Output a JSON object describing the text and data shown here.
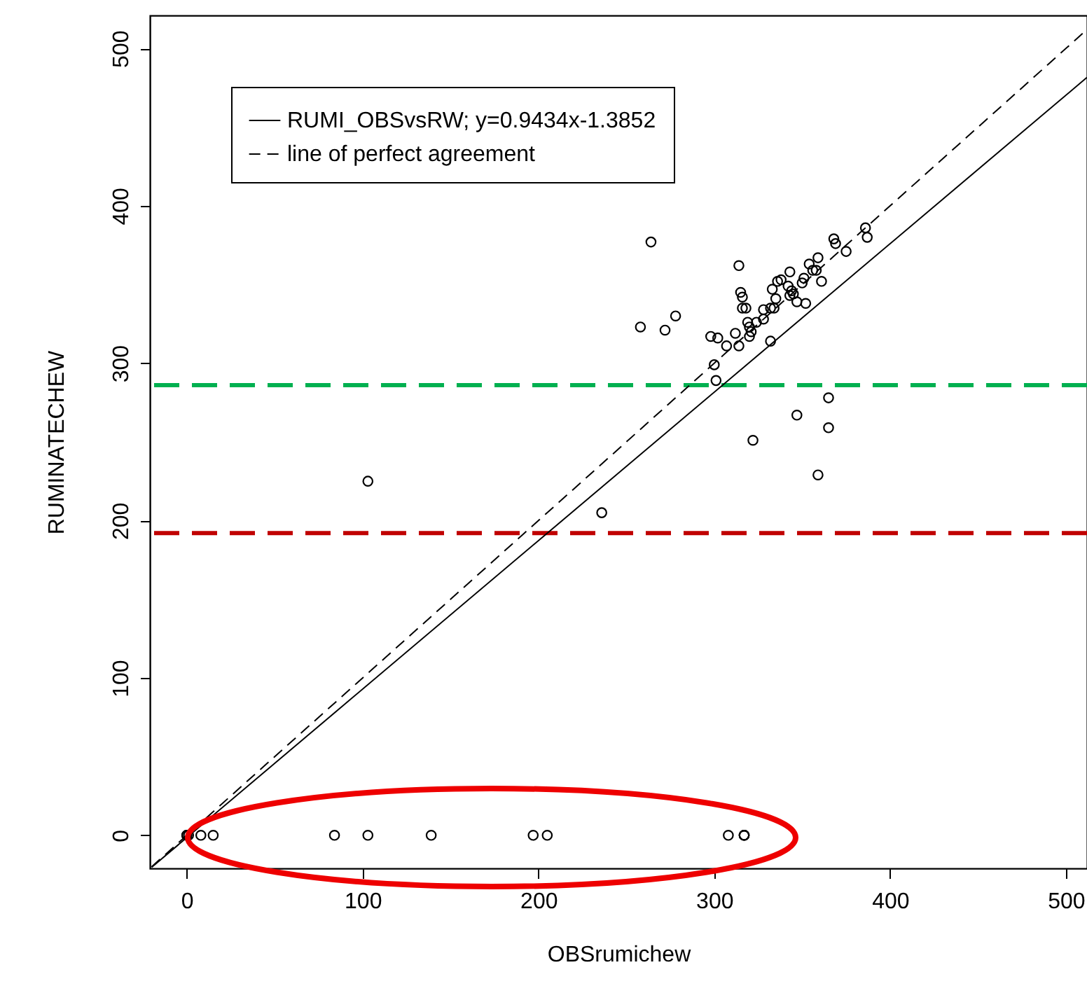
{
  "chart_data": {
    "type": "scatter",
    "xlabel": "OBSrumichew",
    "ylabel": "RUMINATECHEW",
    "xlim": [
      -21,
      512
    ],
    "ylim": [
      -21,
      521
    ],
    "xticks": [
      0,
      100,
      200,
      300,
      400,
      500
    ],
    "yticks": [
      0,
      100,
      200,
      300,
      400,
      500
    ],
    "grid": false,
    "legend": "top left",
    "series": [
      {
        "color": "#000000",
        "marker": "circle",
        "x": [
          264,
          314,
          258,
          272,
          278,
          298,
          302,
          307,
          314,
          312,
          315,
          316,
          316,
          318,
          319,
          320,
          321,
          320,
          324,
          328,
          328,
          332,
          334,
          332,
          335,
          333,
          336,
          338,
          343,
          342,
          344,
          343,
          345,
          347,
          350,
          352,
          351,
          354,
          356,
          359,
          358,
          361,
          368,
          369,
          375,
          386,
          387,
          301,
          300,
          365,
          347,
          365,
          322,
          359,
          103,
          236,
          0,
          0,
          1,
          8,
          15,
          84,
          103,
          139,
          197,
          205,
          308,
          317,
          317,
          317
        ],
        "values": [
          377,
          362,
          323,
          321,
          330,
          317,
          316,
          311,
          311,
          319,
          345,
          342,
          335,
          335,
          326,
          323,
          320,
          317,
          326,
          334,
          328,
          335,
          335,
          314,
          341,
          347,
          352,
          353,
          358,
          349,
          346,
          343,
          344,
          339,
          351,
          338,
          354,
          363,
          359,
          367,
          359,
          352,
          379,
          376,
          371,
          386,
          380,
          289,
          299,
          278,
          267,
          259,
          251,
          229,
          225,
          205,
          0,
          0,
          0,
          0,
          0,
          0,
          0,
          0,
          0,
          0,
          0,
          0,
          0,
          0
        ]
      },
      {
        "type": "line",
        "name": "RUMI_OBSvsRW; y=0.9434x-1.3852",
        "color": "#000000",
        "line_style": "solid",
        "x": [
          -20,
          512
        ],
        "values": [
          -20.3,
          481.6
        ]
      },
      {
        "type": "line",
        "name": "line of perfect agreement",
        "color": "#000000",
        "line_style": "dashed",
        "x": [
          -20,
          512
        ],
        "values": [
          -20,
          512
        ]
      }
    ],
    "ref_lines": [
      {
        "axis": "y",
        "value": 286,
        "color": "#00b050",
        "line_style": "dashed"
      },
      {
        "axis": "y",
        "value": 192,
        "color": "#c00000",
        "line_style": "dashed"
      }
    ]
  }
}
